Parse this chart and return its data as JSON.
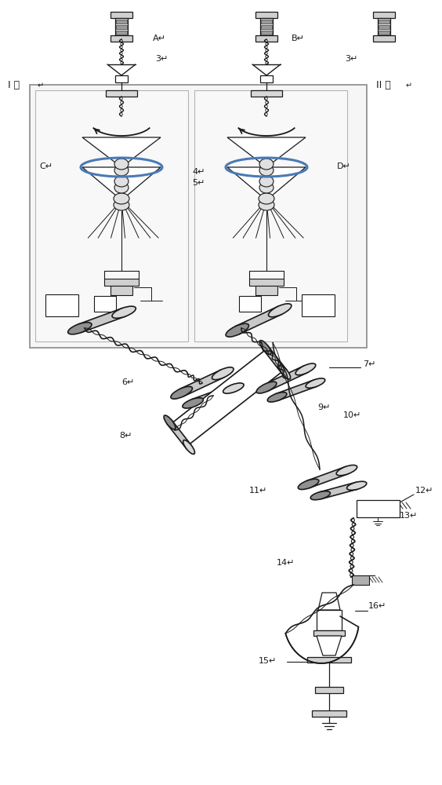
{
  "bg_color": "#ffffff",
  "line_color": "#1a1a1a",
  "blue_color": "#4a7ab5",
  "light_gray": "#eeeeee",
  "labels": [
    "I 区",
    "II 区",
    "A",
    "B",
    "C",
    "D",
    "3",
    "3",
    "4",
    "5",
    "6",
    "7",
    "8",
    "9",
    "10",
    "11",
    "12",
    "13",
    "14",
    "15",
    "16"
  ]
}
